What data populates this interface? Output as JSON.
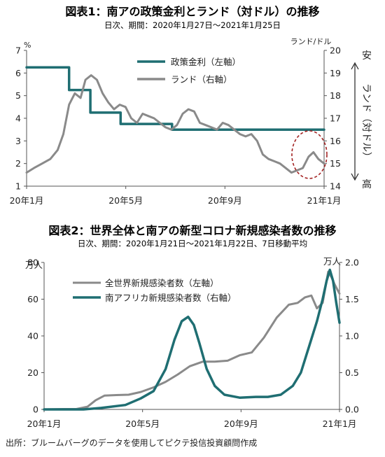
{
  "source_note": "出所：ブルームバーグのデータを使用してピクテ投信投資顧問作成",
  "colors": {
    "teal": "#1f6e72",
    "gray": "#8a8a8a",
    "red_dash": "#a32222"
  },
  "chart_data": [
    {
      "type": "line",
      "title": "図表1：南アの政策金利とランド（対ドル）の推移",
      "subtitle": "日次、期間：2020年1月27日～2021年1月25日",
      "x_ticks": [
        "20年1月",
        "20年5月",
        "20年9月",
        "21年1月"
      ],
      "x_range": [
        "2020-01-27",
        "2021-01-25"
      ],
      "y_left": {
        "unit": "%",
        "range": [
          1,
          7
        ],
        "ticks": [
          1,
          2,
          3,
          4,
          5,
          6,
          7
        ]
      },
      "y_right": {
        "unit": "ランド/ドル",
        "range": [
          14,
          20
        ],
        "ticks": [
          14,
          15,
          16,
          17,
          18,
          19,
          20
        ],
        "inverted": true,
        "label": "ランド（対ドル）",
        "top_label": "安",
        "bottom_label": "高"
      },
      "series": [
        {
          "name": "政策金利（左軸）",
          "axis": "left",
          "style": "step",
          "color": "#1f6e72",
          "points": [
            [
              "2020-01-27",
              6.25
            ],
            [
              "2020-03-19",
              5.25
            ],
            [
              "2020-04-14",
              4.25
            ],
            [
              "2020-05-21",
              3.75
            ],
            [
              "2020-07-23",
              3.5
            ],
            [
              "2021-01-25",
              3.5
            ]
          ]
        },
        {
          "name": "ランド（右軸）",
          "axis": "right",
          "color": "#8a8a8a",
          "points": [
            [
              "2020-01-27",
              14.6
            ],
            [
              "2020-02-05",
              14.8
            ],
            [
              "2020-02-15",
              15.0
            ],
            [
              "2020-02-25",
              15.2
            ],
            [
              "2020-03-05",
              15.6
            ],
            [
              "2020-03-12",
              16.3
            ],
            [
              "2020-03-19",
              17.6
            ],
            [
              "2020-03-26",
              18.1
            ],
            [
              "2020-04-02",
              17.9
            ],
            [
              "2020-04-08",
              18.7
            ],
            [
              "2020-04-15",
              18.9
            ],
            [
              "2020-04-22",
              18.7
            ],
            [
              "2020-04-29",
              18.1
            ],
            [
              "2020-05-06",
              17.7
            ],
            [
              "2020-05-13",
              17.4
            ],
            [
              "2020-05-20",
              17.6
            ],
            [
              "2020-05-27",
              17.5
            ],
            [
              "2020-06-03",
              17.0
            ],
            [
              "2020-06-10",
              16.8
            ],
            [
              "2020-06-17",
              17.2
            ],
            [
              "2020-06-24",
              17.1
            ],
            [
              "2020-07-01",
              17.0
            ],
            [
              "2020-07-08",
              16.8
            ],
            [
              "2020-07-15",
              16.6
            ],
            [
              "2020-07-22",
              16.5
            ],
            [
              "2020-07-29",
              16.7
            ],
            [
              "2020-08-05",
              17.2
            ],
            [
              "2020-08-12",
              17.4
            ],
            [
              "2020-08-19",
              17.3
            ],
            [
              "2020-08-26",
              16.8
            ],
            [
              "2020-09-02",
              16.7
            ],
            [
              "2020-09-09",
              16.6
            ],
            [
              "2020-09-16",
              16.5
            ],
            [
              "2020-09-23",
              16.8
            ],
            [
              "2020-09-30",
              16.7
            ],
            [
              "2020-10-07",
              16.5
            ],
            [
              "2020-10-14",
              16.3
            ],
            [
              "2020-10-21",
              16.2
            ],
            [
              "2020-10-28",
              16.3
            ],
            [
              "2020-11-04",
              16.0
            ],
            [
              "2020-11-11",
              15.4
            ],
            [
              "2020-11-18",
              15.2
            ],
            [
              "2020-11-25",
              15.1
            ],
            [
              "2020-12-02",
              15.0
            ],
            [
              "2020-12-09",
              14.8
            ],
            [
              "2020-12-16",
              14.6
            ],
            [
              "2020-12-23",
              14.7
            ],
            [
              "2020-12-30",
              14.8
            ],
            [
              "2021-01-06",
              15.3
            ],
            [
              "2021-01-12",
              15.5
            ],
            [
              "2021-01-18",
              15.2
            ],
            [
              "2021-01-25",
              15.0
            ]
          ]
        }
      ],
      "annotation": {
        "type": "dashed-ellipse",
        "color": "#a32222",
        "x_range": [
          "2020-12-20",
          "2021-01-25"
        ]
      }
    },
    {
      "type": "line",
      "title": "図表2：世界全体と南アの新型コロナ新規感染者数の推移",
      "subtitle": "日次、期間：2020年1月21日～2021年1月22日、7日移動平均",
      "x_ticks": [
        "20年1月",
        "20年5月",
        "20年9月",
        "21年1月"
      ],
      "x_range": [
        "2020-01-21",
        "2021-01-22"
      ],
      "y_left": {
        "unit": "万人",
        "range": [
          0,
          80
        ],
        "ticks": [
          0,
          20,
          40,
          60,
          80
        ]
      },
      "y_right": {
        "unit": "万人",
        "range": [
          0,
          2.0
        ],
        "ticks": [
          "0.0",
          "0.5",
          "1.0",
          "1.5",
          "2.0"
        ]
      },
      "series": [
        {
          "name": "全世界新規感染者数（左軸）",
          "axis": "left",
          "color": "#8a8a8a",
          "points": [
            [
              "2020-01-21",
              0.0
            ],
            [
              "2020-02-15",
              0.2
            ],
            [
              "2020-03-01",
              0.2
            ],
            [
              "2020-03-15",
              1.5
            ],
            [
              "2020-03-25",
              5.0
            ],
            [
              "2020-04-05",
              7.5
            ],
            [
              "2020-04-20",
              7.8
            ],
            [
              "2020-05-05",
              8.0
            ],
            [
              "2020-05-20",
              9.5
            ],
            [
              "2020-06-05",
              12.0
            ],
            [
              "2020-06-20",
              15.0
            ],
            [
              "2020-07-05",
              19.0
            ],
            [
              "2020-07-20",
              23.5
            ],
            [
              "2020-08-05",
              26.0
            ],
            [
              "2020-08-20",
              26.0
            ],
            [
              "2020-09-05",
              26.5
            ],
            [
              "2020-09-20",
              29.5
            ],
            [
              "2020-10-05",
              31.0
            ],
            [
              "2020-10-20",
              39.0
            ],
            [
              "2020-11-05",
              50.0
            ],
            [
              "2020-11-20",
              57.0
            ],
            [
              "2020-12-01",
              58.0
            ],
            [
              "2020-12-10",
              61.0
            ],
            [
              "2020-12-18",
              62.0
            ],
            [
              "2020-12-25",
              55.0
            ],
            [
              "2021-01-01",
              58.0
            ],
            [
              "2021-01-08",
              75.0
            ],
            [
              "2021-01-12",
              72.0
            ],
            [
              "2021-01-16",
              68.0
            ],
            [
              "2021-01-22",
              63.0
            ]
          ]
        },
        {
          "name": "南アフリカ新規感染者数（右軸）",
          "axis": "right",
          "color": "#1f6e72",
          "points": [
            [
              "2020-01-21",
              0.0
            ],
            [
              "2020-03-10",
              0.0
            ],
            [
              "2020-04-01",
              0.02
            ],
            [
              "2020-05-01",
              0.06
            ],
            [
              "2020-05-20",
              0.15
            ],
            [
              "2020-06-05",
              0.25
            ],
            [
              "2020-06-20",
              0.55
            ],
            [
              "2020-07-01",
              0.95
            ],
            [
              "2020-07-10",
              1.2
            ],
            [
              "2020-07-18",
              1.26
            ],
            [
              "2020-07-25",
              1.15
            ],
            [
              "2020-08-01",
              0.9
            ],
            [
              "2020-08-10",
              0.55
            ],
            [
              "2020-08-20",
              0.32
            ],
            [
              "2020-09-01",
              0.2
            ],
            [
              "2020-09-20",
              0.16
            ],
            [
              "2020-10-10",
              0.17
            ],
            [
              "2020-10-25",
              0.17
            ],
            [
              "2020-11-10",
              0.2
            ],
            [
              "2020-11-25",
              0.32
            ],
            [
              "2020-12-05",
              0.5
            ],
            [
              "2020-12-15",
              0.85
            ],
            [
              "2020-12-25",
              1.2
            ],
            [
              "2021-01-01",
              1.5
            ],
            [
              "2021-01-06",
              1.75
            ],
            [
              "2021-01-10",
              1.9
            ],
            [
              "2021-01-14",
              1.75
            ],
            [
              "2021-01-18",
              1.45
            ],
            [
              "2021-01-22",
              1.18
            ]
          ]
        }
      ]
    }
  ]
}
